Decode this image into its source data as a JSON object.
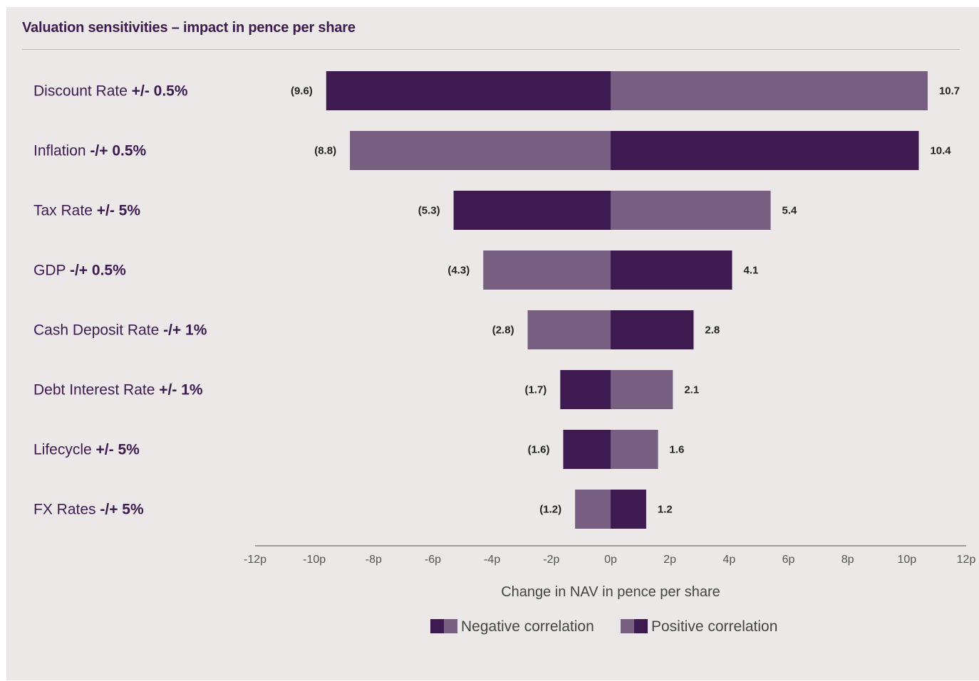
{
  "colors": {
    "dark": "#3d1a50",
    "light": "#765f80",
    "background": "#ebe8e7"
  },
  "title": "Valuation sensitivities – impact in pence per share",
  "chart_data": {
    "type": "bar",
    "orientation": "horizontal",
    "title": "Valuation sensitivities – impact in pence per share",
    "xlabel": "Change in NAV in pence per share",
    "xlim": [
      -12,
      12
    ],
    "x_ticks": [
      "-12p",
      "-10p",
      "-8p",
      "-6p",
      "-4p",
      "-2p",
      "0p",
      "2p",
      "4p",
      "6p",
      "8p",
      "10p",
      "12p"
    ],
    "categories": [
      {
        "name": "Discount Rate",
        "change": "+/- 0.5%",
        "neg": -9.6,
        "pos": 10.7,
        "neg_label": "(9.6)",
        "pos_label": "10.7",
        "correlation": "negative"
      },
      {
        "name": "Inflation",
        "change": "-/+ 0.5%",
        "neg": -8.8,
        "pos": 10.4,
        "neg_label": "(8.8)",
        "pos_label": "10.4",
        "correlation": "positive"
      },
      {
        "name": "Tax Rate",
        "change": "+/- 5%",
        "neg": -5.3,
        "pos": 5.4,
        "neg_label": "(5.3)",
        "pos_label": "5.4",
        "correlation": "negative"
      },
      {
        "name": "GDP",
        "change": "-/+ 0.5%",
        "neg": -4.3,
        "pos": 4.1,
        "neg_label": "(4.3)",
        "pos_label": "4.1",
        "correlation": "positive"
      },
      {
        "name": "Cash Deposit Rate",
        "change": "-/+ 1%",
        "neg": -2.8,
        "pos": 2.8,
        "neg_label": "(2.8)",
        "pos_label": "2.8",
        "correlation": "positive"
      },
      {
        "name": "Debt Interest Rate",
        "change": "+/- 1%",
        "neg": -1.7,
        "pos": 2.1,
        "neg_label": "(1.7)",
        "pos_label": "2.1",
        "correlation": "negative"
      },
      {
        "name": "Lifecycle",
        "change": "+/- 5%",
        "neg": -1.6,
        "pos": 1.6,
        "neg_label": "(1.6)",
        "pos_label": "1.6",
        "correlation": "negative"
      },
      {
        "name": "FX Rates",
        "change": "-/+ 5%",
        "neg": -1.2,
        "pos": 1.2,
        "neg_label": "(1.2)",
        "pos_label": "1.2",
        "correlation": "positive"
      }
    ],
    "legend": [
      {
        "label": "Negative correlation",
        "colors": [
          "#3d1a50",
          "#765f80"
        ]
      },
      {
        "label": "Positive correlation",
        "colors": [
          "#765f80",
          "#3d1a50"
        ]
      }
    ],
    "legend_position": "bottom-center",
    "grid": false
  }
}
